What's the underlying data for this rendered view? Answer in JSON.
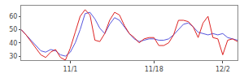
{
  "chart_data": {
    "type": "line",
    "x": [
      0,
      1,
      2,
      3,
      4,
      5,
      6,
      7,
      8,
      9,
      10,
      11,
      12,
      13,
      14,
      15,
      16,
      17,
      18,
      19,
      20,
      21,
      22,
      23,
      24,
      25,
      26,
      27,
      28,
      29,
      30,
      31,
      32,
      33,
      34,
      35,
      36,
      37,
      38,
      39,
      40,
      41,
      42,
      43,
      44
    ],
    "series": [
      {
        "color": "#5555dd",
        "values": [
          50,
          46,
          42,
          38,
          34,
          33,
          35,
          34,
          31,
          30,
          33,
          40,
          50,
          62,
          63,
          58,
          51,
          47,
          54,
          59,
          57,
          52,
          47,
          43,
          41,
          42,
          43,
          43,
          42,
          42,
          43,
          46,
          50,
          54,
          55,
          52,
          48,
          47,
          46,
          47,
          46,
          47,
          44,
          43,
          42
        ]
      },
      {
        "color": "#dd2222",
        "values": [
          50,
          46,
          41,
          36,
          31,
          29,
          33,
          35,
          29,
          27,
          36,
          48,
          60,
          65,
          61,
          42,
          41,
          47,
          57,
          63,
          61,
          53,
          47,
          44,
          40,
          43,
          44,
          44,
          38,
          38,
          40,
          46,
          57,
          57,
          56,
          52,
          44,
          55,
          60,
          44,
          43,
          31,
          42,
          43,
          41
        ]
      }
    ],
    "xlim": [
      0,
      44
    ],
    "xticks": [
      {
        "value": 10,
        "label": "11/1"
      },
      {
        "value": 27,
        "label": "11/18"
      },
      {
        "value": 41,
        "label": "12/2"
      }
    ],
    "ylim": [
      27,
      68
    ],
    "yticks": [
      30,
      40,
      50,
      60
    ],
    "grid": false
  }
}
